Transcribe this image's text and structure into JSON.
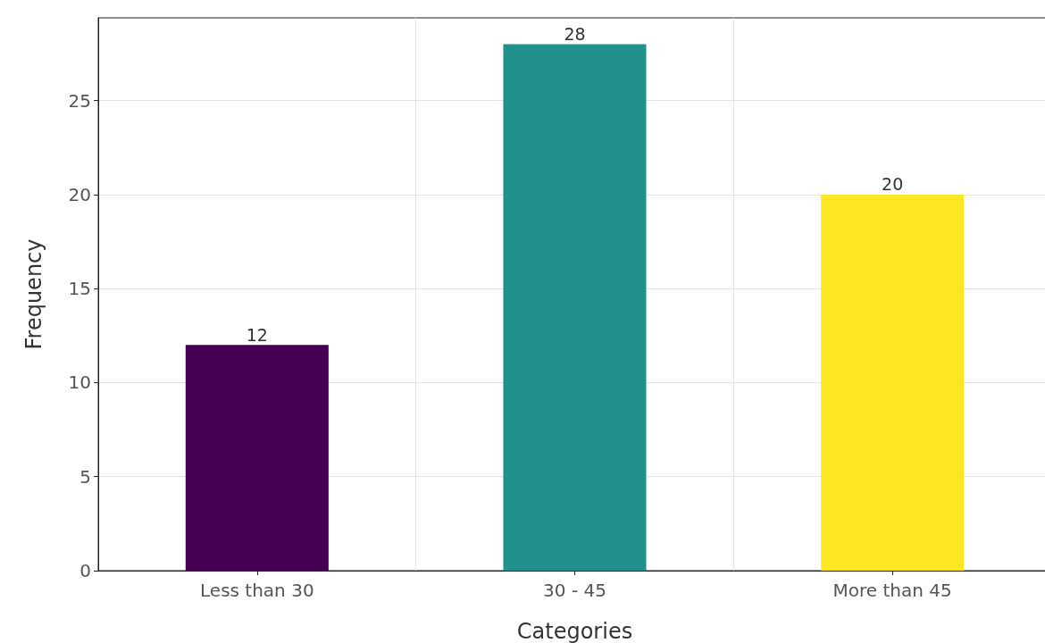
{
  "chart_data": {
    "type": "bar",
    "xlabel": "Categories",
    "ylabel": "Frequency",
    "categories": [
      "Less than 30",
      "30 - 45",
      "More than 45"
    ],
    "values": [
      12,
      28,
      20
    ],
    "colors": [
      "#440154",
      "#21918c",
      "#fde725"
    ],
    "ylim": [
      0,
      29.4
    ],
    "yticks": [
      0,
      5,
      10,
      15,
      20,
      25
    ],
    "grid": true,
    "data_labels": true
  }
}
